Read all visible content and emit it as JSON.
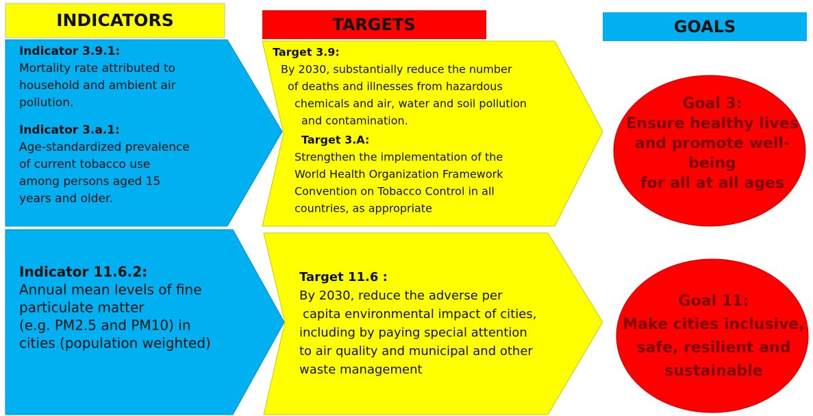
{
  "headers": {
    "indicators": "INDICATORS",
    "targets": "TARGETS",
    "goals": "GOALS"
  },
  "rows": [
    {
      "indicators": [
        {
          "title": "Indicator 3.9.1:",
          "lines": [
            "Mortality rate attributed to",
            "household and ambient air",
            "pollution."
          ]
        },
        {
          "title": "Indicator 3.a.1:",
          "lines": [
            "Age-standardized prevalence",
            "of current tobacco use",
            "among persons aged 15",
            "years and older."
          ]
        }
      ],
      "targets": [
        {
          "title": "Target 3.9:",
          "lines": [
            "By 2030, substantially reduce the number",
            "of deaths and illnesses from hazardous",
            "chemicals and air, water and soil pollution",
            "and contamination."
          ]
        },
        {
          "title": "Target 3.A:",
          "lines": [
            "Strengthen the implementation of the",
            "World Health Organization Framework",
            "Convention on Tobacco Control in all",
            "countries, as appropriate"
          ]
        }
      ],
      "goal": [
        "Goal 3:",
        "Ensure healthy lives",
        "and promote well-",
        "being",
        "for all at all ages"
      ]
    },
    {
      "indicators": [
        {
          "title": "Indicator 11.6.2:",
          "lines": [
            "Annual mean levels of fine",
            "particulate matter",
            "(e.g. PM2.5 and PM10) in",
            "cities (population weighted)"
          ]
        }
      ],
      "targets": [
        {
          "title": "Target 11.6 :",
          "lines": [
            "By 2030, reduce the adverse per",
            "capita environmental impact of cities,",
            "including by paying special attention",
            "to air quality and municipal and other",
            "waste management"
          ]
        }
      ],
      "goal": [
        "Goal 11:",
        "Make cities inclusive,",
        "safe, resilient and",
        "sustainable"
      ]
    }
  ]
}
